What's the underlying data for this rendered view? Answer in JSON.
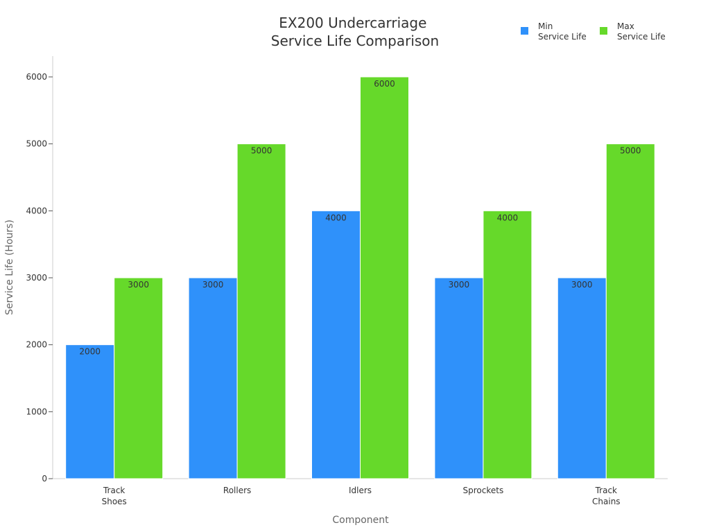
{
  "chart_data": {
    "type": "bar",
    "title": [
      "EX200 Undercarriage",
      "Service Life Comparison"
    ],
    "xlabel": "Component",
    "ylabel": "Service Life (Hours)",
    "categories": [
      [
        "Track",
        "Shoes"
      ],
      [
        "Rollers"
      ],
      [
        "Idlers"
      ],
      [
        "Sprockets"
      ],
      [
        "Track",
        "Chains"
      ]
    ],
    "series": [
      {
        "name": [
          "Min",
          "Service Life"
        ],
        "color": "#2f91fa",
        "values": [
          2000,
          3000,
          4000,
          3000,
          3000
        ]
      },
      {
        "name": [
          "Max",
          "Service Life"
        ],
        "color": "#66d92a",
        "values": [
          3000,
          5000,
          6000,
          4000,
          5000
        ]
      }
    ],
    "ylim": [
      0,
      6000
    ],
    "yticks": [
      0,
      1000,
      2000,
      3000,
      4000,
      5000,
      6000
    ],
    "legend": "top-right",
    "grid": false
  }
}
